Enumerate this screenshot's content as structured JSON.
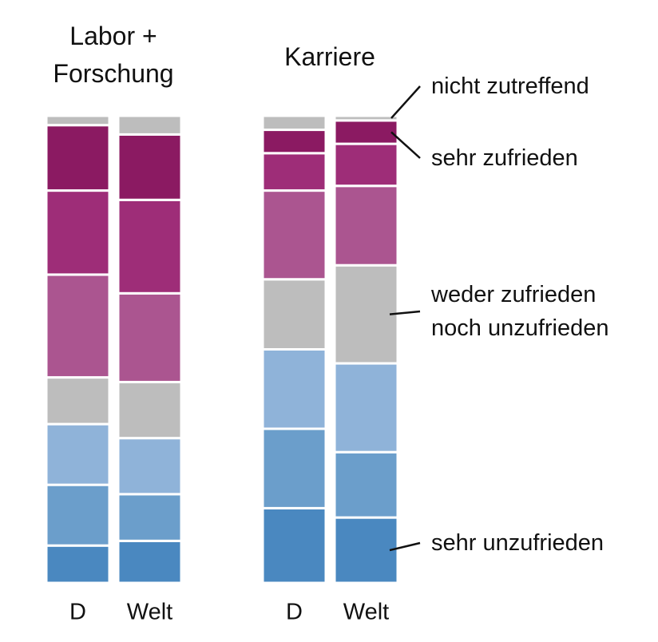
{
  "chart_data": [
    {
      "type": "bar",
      "stacked": true,
      "title": "Labor + Forschung",
      "categories": [
        "D",
        "Welt"
      ],
      "series": [
        {
          "color": "#4a88c0",
          "values": [
            8,
            9
          ]
        },
        {
          "color": "#6b9ecb",
          "values": [
            13,
            10
          ]
        },
        {
          "color": "#8fb3d9",
          "values": [
            13,
            12
          ]
        },
        {
          "color": "#bdbdbd",
          "values": [
            10,
            12
          ]
        },
        {
          "color": "#ab5590",
          "values": [
            22,
            19
          ]
        },
        {
          "color": "#9e2d78",
          "values": [
            18,
            20
          ]
        },
        {
          "color": "#8b1a62",
          "values": [
            14,
            14
          ]
        },
        {
          "color": "#bdbdbd",
          "values": [
            2,
            4
          ]
        }
      ]
    },
    {
      "type": "bar",
      "stacked": true,
      "title": "Karriere",
      "categories": [
        "D",
        "Welt"
      ],
      "series": [
        {
          "name": "sehr unzufrieden",
          "color": "#4a88c0",
          "values": [
            16,
            14
          ]
        },
        {
          "color": "#6b9ecb",
          "values": [
            17,
            14
          ]
        },
        {
          "color": "#8fb3d9",
          "values": [
            17,
            19
          ]
        },
        {
          "name": "weder zufrieden noch unzufrieden",
          "color": "#bdbdbd",
          "values": [
            15,
            21
          ]
        },
        {
          "color": "#ab5590",
          "values": [
            19,
            17
          ]
        },
        {
          "color": "#9e2d78",
          "values": [
            8,
            9
          ]
        },
        {
          "name": "sehr zufrieden",
          "color": "#8b1a62",
          "values": [
            5,
            5
          ]
        },
        {
          "name": "nicht zutreffend",
          "color": "#bdbdbd",
          "values": [
            3,
            1
          ]
        }
      ]
    }
  ]
}
